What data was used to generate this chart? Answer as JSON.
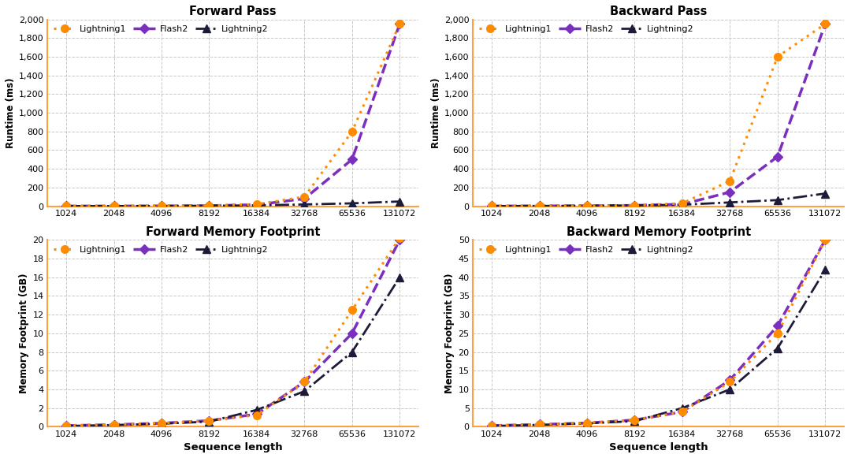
{
  "x_labels": [
    "1024",
    "2048",
    "4096",
    "8192",
    "16384",
    "32768",
    "65536",
    "131072"
  ],
  "x_positions": [
    0,
    1,
    2,
    3,
    4,
    5,
    6,
    7
  ],
  "forward_pass": {
    "title": "Forward Pass",
    "ylabel": "Runtime (ms)",
    "ylim": [
      0,
      2000
    ],
    "yticks": [
      0,
      200,
      400,
      600,
      800,
      1000,
      1200,
      1400,
      1600,
      1800,
      2000
    ],
    "lightning1": [
      1,
      2,
      3,
      6,
      20,
      100,
      800,
      1950
    ],
    "flash2": [
      1,
      1,
      2,
      5,
      15,
      80,
      500,
      1950
    ],
    "lightning2": [
      1,
      1,
      2,
      4,
      8,
      18,
      30,
      50
    ]
  },
  "backward_pass": {
    "title": "Backward Pass",
    "ylabel": "Runtime (ms)",
    "ylim": [
      0,
      2000
    ],
    "yticks": [
      0,
      200,
      400,
      600,
      800,
      1000,
      1200,
      1400,
      1600,
      1800,
      2000
    ],
    "lightning1": [
      1,
      2,
      4,
      8,
      30,
      270,
      1600,
      1950
    ],
    "flash2": [
      1,
      2,
      4,
      8,
      20,
      150,
      530,
      1950
    ],
    "lightning2": [
      1,
      2,
      4,
      8,
      15,
      40,
      65,
      135
    ]
  },
  "forward_memory": {
    "title": "Forward Memory Footprint",
    "ylabel": "Memory Footprint (GB)",
    "ylim": [
      0,
      20
    ],
    "yticks": [
      0,
      2,
      4,
      6,
      8,
      10,
      12,
      14,
      16,
      18,
      20
    ],
    "lightning1": [
      0.12,
      0.22,
      0.38,
      0.65,
      1.25,
      4.8,
      12.5,
      20.2
    ],
    "flash2": [
      0.12,
      0.22,
      0.38,
      0.65,
      1.35,
      4.8,
      10.0,
      20.0
    ],
    "lightning2": [
      0.08,
      0.18,
      0.32,
      0.55,
      1.8,
      3.8,
      8.0,
      16.0
    ]
  },
  "backward_memory": {
    "title": "Backward Memory Footprint",
    "ylabel": "Memory Footprint (GB)",
    "ylim": [
      0,
      50
    ],
    "yticks": [
      0,
      5,
      10,
      15,
      20,
      25,
      30,
      35,
      40,
      45,
      50
    ],
    "lightning1": [
      0.3,
      0.6,
      1.0,
      1.8,
      4.0,
      12.0,
      25.0,
      50.0
    ],
    "flash2": [
      0.3,
      0.6,
      1.0,
      1.8,
      4.0,
      12.5,
      27.0,
      50.0
    ],
    "lightning2": [
      0.2,
      0.5,
      0.9,
      1.5,
      5.0,
      10.0,
      21.0,
      42.0
    ]
  },
  "colors": {
    "lightning1": "#FF8C00",
    "flash2": "#7B2FBE",
    "lightning2": "#1C1C3A"
  },
  "xlabel": "Sequence length",
  "bg_color": "#ffffff",
  "grid_color": "#c8c8c8",
  "spine_orange": "#FFA040"
}
